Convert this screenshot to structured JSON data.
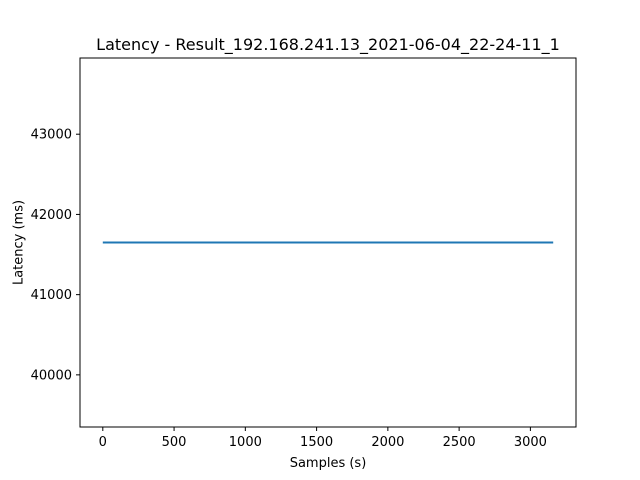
{
  "chart_data": {
    "type": "line",
    "title": "Latency - Result_192.168.241.13_2021-06-04_22-24-11_1",
    "xlabel": "Samples  (s)",
    "ylabel": "Latency (ms)",
    "xlim": [
      -160,
      3320
    ],
    "ylim": [
      39350,
      43950
    ],
    "xticks": [
      0,
      500,
      1000,
      1500,
      2000,
      2500,
      3000
    ],
    "yticks": [
      40000,
      41000,
      42000,
      43000
    ],
    "grid": false,
    "series": [
      {
        "color": "#1f77b4",
        "x": [
          0,
          3160
        ],
        "y": [
          41650,
          41650
        ]
      }
    ]
  }
}
